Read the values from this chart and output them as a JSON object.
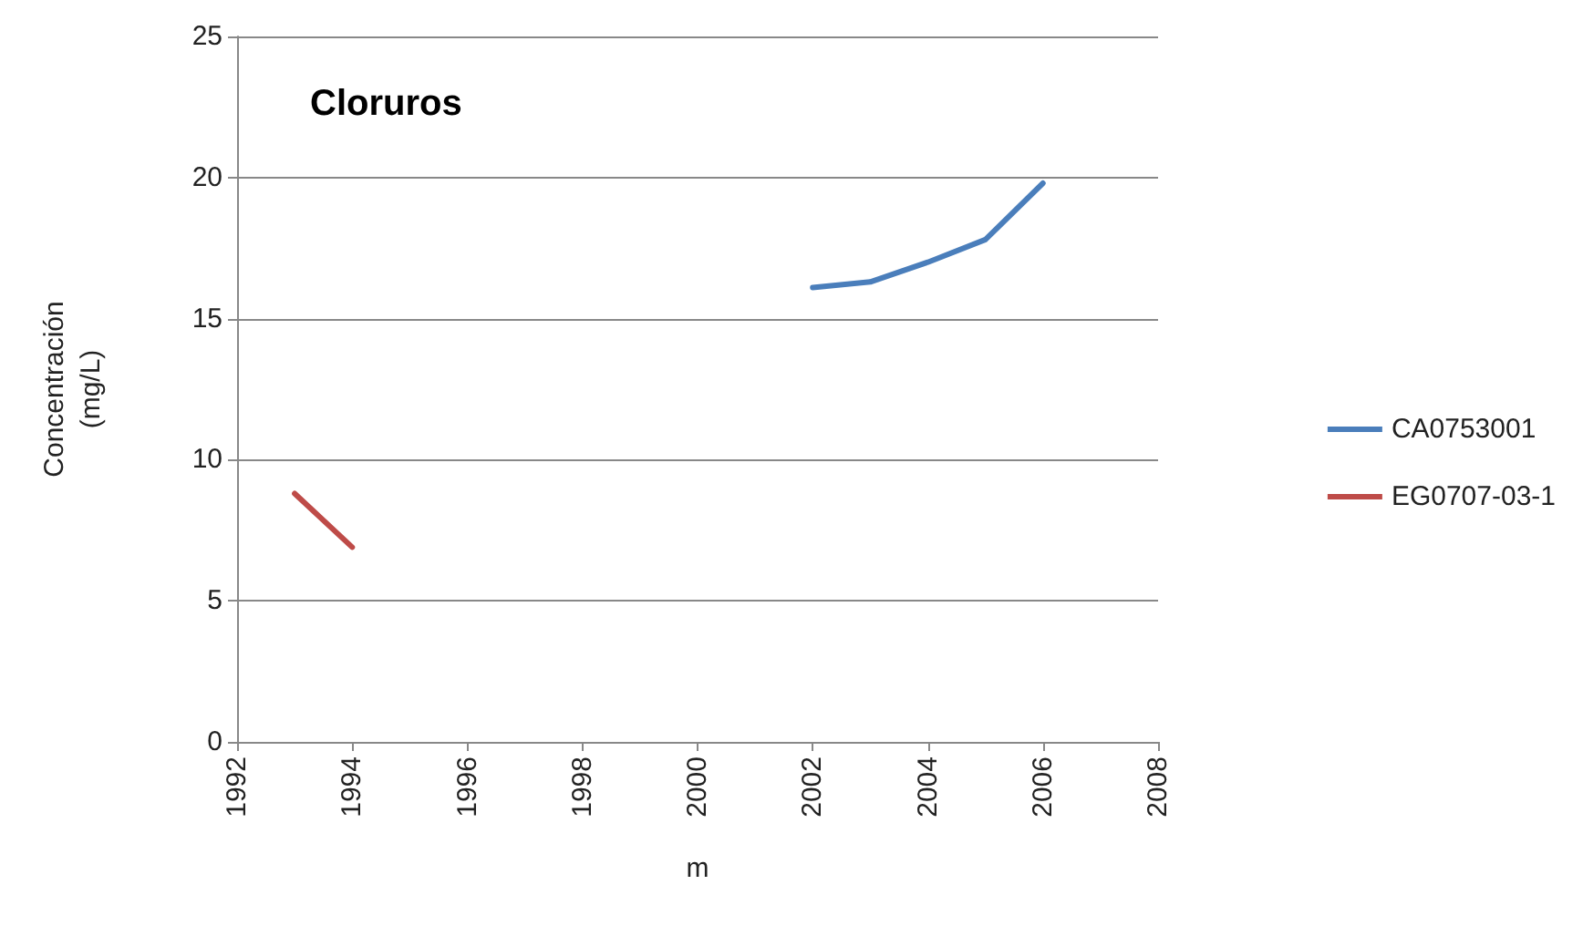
{
  "chart_data": {
    "type": "line",
    "title": "Cloruros",
    "xlabel": "m",
    "ylabel": "Concentración\n(mg/L)",
    "xlim": [
      1992,
      2008
    ],
    "xticks": [
      1992,
      1994,
      1996,
      1998,
      2000,
      2002,
      2004,
      2006,
      2008
    ],
    "ylim": [
      0,
      25
    ],
    "yticks": [
      0,
      5,
      10,
      15,
      20,
      25
    ],
    "grid": "y",
    "legend": "right",
    "marker": "none",
    "line_style": "solid",
    "series": [
      {
        "name": "CA0753001",
        "color": "#4a7ebb",
        "x": [
          2002,
          2003,
          2004,
          2005,
          2006
        ],
        "values": [
          16.1,
          16.3,
          17.0,
          17.8,
          19.8
        ]
      },
      {
        "name": "EG0707-03-1",
        "color": "#be4b48",
        "x": [
          1993,
          1994
        ],
        "values": [
          8.8,
          6.9
        ]
      }
    ]
  }
}
